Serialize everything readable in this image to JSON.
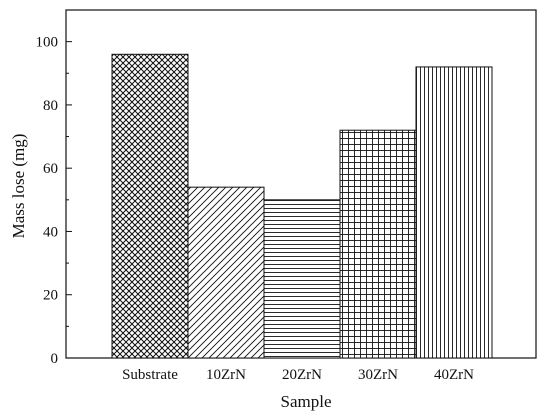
{
  "chart_data": {
    "type": "bar",
    "title": "",
    "xlabel": "Sample",
    "ylabel": "Mass lose (mg)",
    "categories": [
      "Substrate",
      "10ZrN",
      "20ZrN",
      "30ZrN",
      "40ZrN"
    ],
    "values": [
      96,
      54,
      50,
      72,
      92
    ],
    "patterns": [
      "crosshatch-diagonal",
      "diagonal-lines",
      "horizontal-lines",
      "grid",
      "vertical-lines"
    ],
    "ylim": [
      0,
      110
    ],
    "yticks": [
      0,
      20,
      40,
      60,
      80,
      100
    ],
    "grid": false,
    "colors": {
      "bar_fill": "#ffffff",
      "stroke": "#111111"
    }
  }
}
